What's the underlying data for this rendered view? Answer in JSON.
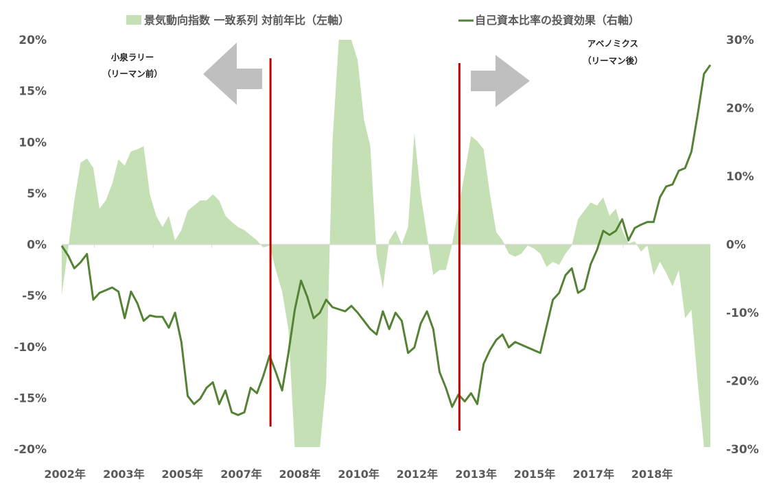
{
  "chart_data": {
    "type": "area+line",
    "title": "",
    "x_unit": "month index (approx. monthly, from Jan 2002)",
    "xlim": [
      0,
      206
    ],
    "xticks": [
      {
        "x": 1,
        "label": "2002年"
      },
      {
        "x": 19.7,
        "label": "2003年"
      },
      {
        "x": 38.3,
        "label": "2005年"
      },
      {
        "x": 57,
        "label": "2007年"
      },
      {
        "x": 75.6,
        "label": "2008年"
      },
      {
        "x": 94.3,
        "label": "2010年"
      },
      {
        "x": 112.9,
        "label": "2012年"
      },
      {
        "x": 131.6,
        "label": "2013年"
      },
      {
        "x": 150.2,
        "label": "2015年"
      },
      {
        "x": 168.9,
        "label": "2017年"
      },
      {
        "x": 187.5,
        "label": "2018年"
      }
    ],
    "y_left": {
      "range": [
        -20,
        20
      ],
      "ticks": [
        20,
        15,
        10,
        5,
        0,
        -5,
        -10,
        -15,
        -20
      ],
      "tick_labels": [
        "20%",
        "15%",
        "10%",
        "5%",
        "0%",
        "-5%",
        "-10%",
        "-15%",
        "-20%"
      ]
    },
    "y_right": {
      "range": [
        -30,
        30
      ],
      "ticks": [
        30,
        20,
        10,
        0,
        -10,
        -20,
        -30
      ],
      "tick_labels": [
        "30%",
        "20%",
        "10%",
        "0%",
        "-10%",
        "-20%",
        "-30%"
      ]
    },
    "x": [
      0,
      2,
      4,
      6,
      8,
      10,
      12,
      14,
      16,
      18,
      20,
      22,
      24,
      26,
      28,
      30,
      32,
      34,
      36,
      38,
      40,
      42,
      44,
      46,
      48,
      50,
      52,
      54,
      56,
      58,
      60,
      62,
      64,
      66,
      68,
      70,
      72,
      74,
      76,
      78,
      80,
      82,
      84,
      86,
      88,
      90,
      92,
      94,
      96,
      98,
      100,
      102,
      104,
      106,
      108,
      110,
      112,
      114,
      116,
      118,
      120,
      122,
      124,
      126,
      128,
      130,
      132,
      134,
      136,
      138,
      140,
      142,
      144,
      146,
      148,
      150,
      152,
      154,
      156,
      158,
      160,
      162,
      164,
      166,
      168,
      170,
      172,
      174,
      176,
      178,
      180,
      182,
      184,
      186,
      188,
      190,
      192,
      194,
      196,
      198,
      200,
      202,
      204,
      206
    ],
    "series": [
      {
        "name": "景気動向指数 一致系列 対前年比（左軸）",
        "axis": "left",
        "kind": "area",
        "color": "#c5e0b4",
        "values": [
          -4.9,
          -0.5,
          4.3,
          8.0,
          8.4,
          7.5,
          3.5,
          4.3,
          5.9,
          8.3,
          7.7,
          9.1,
          9.3,
          9.6,
          4.9,
          2.8,
          1.7,
          2.8,
          0.4,
          1.4,
          3.3,
          3.8,
          4.3,
          4.3,
          4.9,
          4.3,
          2.8,
          2.2,
          1.7,
          1.4,
          0.9,
          0.4,
          -0.3,
          -0.1,
          -2.5,
          -4.6,
          -8.3,
          -19.8,
          -19.8,
          -19.8,
          -19.8,
          -19.8,
          -13.5,
          10.1,
          20,
          20,
          20,
          18.0,
          12.2,
          9.6,
          -1.0,
          -4.3,
          0.4,
          1.4,
          0,
          1.7,
          10.9,
          4.9,
          0.9,
          -3.0,
          -2.5,
          -2.5,
          0,
          3.5,
          7.0,
          10.6,
          10.1,
          9.3,
          4.9,
          1.2,
          0.4,
          -0.9,
          -1.2,
          -0.9,
          -0.1,
          -0.4,
          -0.9,
          -2.2,
          -1.7,
          -2.0,
          -0.9,
          -0.1,
          2.5,
          3.3,
          4.1,
          3.8,
          4.6,
          2.8,
          3.5,
          1.4,
          0.1,
          0.3,
          -0.7,
          -0.1,
          -3.0,
          -1.7,
          -2.8,
          -4.1,
          -2.5,
          -7.2,
          -6.4,
          -13.5,
          -19.8,
          -19.8
        ]
      },
      {
        "name": "自己資本比率の投資効果（右軸）",
        "axis": "right",
        "kind": "line",
        "color": "#548235",
        "values": [
          -0.2,
          -1.6,
          -3.5,
          -2.6,
          -1.4,
          -8.1,
          -7.1,
          -6.7,
          -6.3,
          -6.9,
          -10.8,
          -6.9,
          -8.6,
          -11.2,
          -10.4,
          -10.6,
          -10.6,
          -12.2,
          -10.0,
          -14.3,
          -22.2,
          -23.4,
          -22.6,
          -21.0,
          -20.2,
          -23.4,
          -21.4,
          -24.6,
          -25.0,
          -24.6,
          -21.0,
          -21.8,
          -19.3,
          -16.3,
          -18.7,
          -21.4,
          -15.9,
          -9.6,
          -5.3,
          -7.7,
          -10.8,
          -10.0,
          -8.1,
          -9.2,
          -9.5,
          -9.8,
          -9.0,
          -10.0,
          -11.2,
          -12.4,
          -13.2,
          -9.8,
          -12.4,
          -10.0,
          -11.2,
          -15.9,
          -15.1,
          -11.6,
          -9.8,
          -12.4,
          -18.7,
          -21.0,
          -23.8,
          -22.0,
          -23.0,
          -21.8,
          -23.4,
          -17.5,
          -15.5,
          -14.0,
          -13.2,
          -15.1,
          -14.3,
          -14.7,
          -15.1,
          -15.5,
          -15.9,
          -12.0,
          -8.1,
          -7.1,
          -4.5,
          -3.5,
          -7.1,
          -6.5,
          -2.9,
          -0.8,
          2.0,
          1.4,
          2.0,
          3.7,
          0.6,
          2.4,
          2.9,
          3.3,
          3.3,
          6.9,
          8.5,
          8.8,
          10.8,
          11.2,
          13.6,
          19.1,
          25.0,
          26.3
        ]
      }
    ],
    "vertical_markers": [
      66.3,
      126.3
    ],
    "vertical_marker_color": "#c00000",
    "annotations": [
      {
        "line1": "小泉ラリー",
        "line2": "（リーマン前）",
        "arrow": "left"
      },
      {
        "line1": "アベノミクス",
        "line2": "（リーマン後）",
        "arrow": "right"
      }
    ],
    "arrow_color": "#bfbfbf",
    "legend": {
      "placement": "top",
      "entries": [
        "景気動向指数 一致系列 対前年比（左軸）",
        "自己資本比率の投資効果（右軸）"
      ]
    },
    "grid": false
  }
}
